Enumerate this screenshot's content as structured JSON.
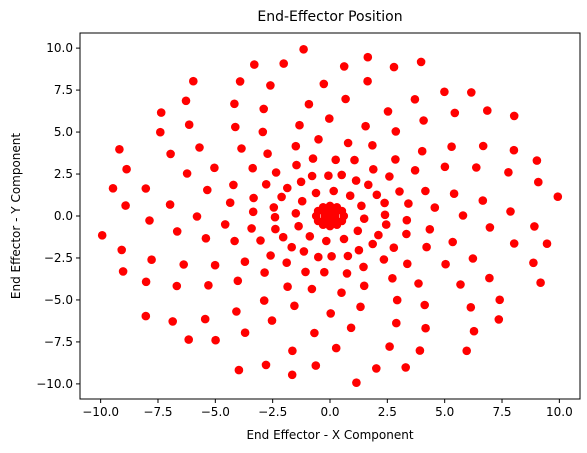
{
  "chart_data": {
    "type": "scatter",
    "title": "End-Effector Position",
    "xlabel": "End Effector - X Component",
    "ylabel": "End Effector - Y Component",
    "xlim": [
      -10.9,
      10.9
    ],
    "ylim": [
      -10.9,
      10.9
    ],
    "xticks": [
      -10.0,
      -7.5,
      -5.0,
      -2.5,
      0.0,
      2.5,
      5.0,
      7.5,
      10.0
    ],
    "xtick_labels": [
      "−10.0",
      "−7.5",
      "−5.0",
      "−2.5",
      "0.0",
      "2.5",
      "5.0",
      "7.5",
      "10.0"
    ],
    "yticks": [
      -10.0,
      -7.5,
      -5.0,
      -2.5,
      0.0,
      2.5,
      5.0,
      7.5,
      10.0
    ],
    "ytick_labels": [
      "−10.0",
      "−7.5",
      "−5.0",
      "−2.5",
      "0.0",
      "2.5",
      "5.0",
      "7.5",
      "10.0"
    ],
    "grid": false,
    "marker_color": "#ff0000",
    "pattern": {
      "description_note_free": true,
      "radii": [
        0.6,
        1.5,
        2.5,
        3.5,
        4.6,
        5.8,
        7.0,
        8.2,
        9.3,
        10.0
      ],
      "arms": 12
    },
    "points": []
  }
}
